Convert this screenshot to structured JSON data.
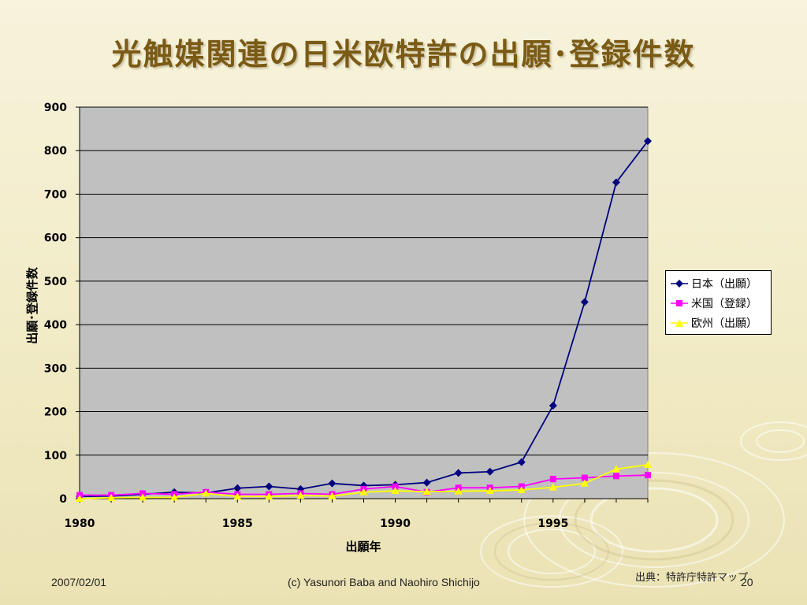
{
  "slide": {
    "title": "光触媒関連の日米欧特許の出願･登録件数",
    "footer_date": "2007/02/01",
    "footer_copyright": "(c) Yasunori Baba and Naohiro Shichijo",
    "footer_source": "出典：特許庁特許マップ",
    "page_number": "20"
  },
  "colors": {
    "title": "#7a5a14",
    "plot_bg": "#c0c0c0",
    "japan": "#000080",
    "us": "#ff00ff",
    "europe": "#ffff00"
  },
  "chart_data": {
    "type": "line",
    "title": "",
    "xlabel": "出願年",
    "ylabel": "出願･登録件数",
    "xlim": [
      1980,
      1998
    ],
    "ylim": [
      0,
      900
    ],
    "x_ticks": [
      "1980",
      "1985",
      "1990",
      "1995"
    ],
    "y_ticks": [
      "0",
      "100",
      "200",
      "300",
      "400",
      "500",
      "600",
      "700",
      "800",
      "900"
    ],
    "grid": "horizontal",
    "legend_position": "right",
    "x": [
      1980,
      1981,
      1982,
      1983,
      1984,
      1985,
      1986,
      1987,
      1988,
      1989,
      1990,
      1991,
      1992,
      1993,
      1994,
      1995,
      1996,
      1997,
      1998
    ],
    "series": [
      {
        "name": "日本（出願）",
        "marker": "diamond",
        "color": "#000080",
        "values": [
          5,
          6,
          10,
          15,
          13,
          24,
          28,
          22,
          35,
          30,
          32,
          37,
          59,
          62,
          84,
          214,
          452,
          727,
          822
        ]
      },
      {
        "name": "米国（登録）",
        "marker": "square",
        "color": "#ff00ff",
        "values": [
          8,
          8,
          12,
          10,
          15,
          10,
          10,
          12,
          10,
          22,
          28,
          15,
          25,
          25,
          28,
          45,
          48,
          52,
          54
        ]
      },
      {
        "name": "欧州（出願）",
        "marker": "triangle",
        "color": "#ffff00",
        "values": [
          0,
          2,
          3,
          3,
          12,
          5,
          5,
          7,
          6,
          15,
          18,
          16,
          17,
          18,
          20,
          26,
          35,
          68,
          78
        ]
      }
    ]
  }
}
